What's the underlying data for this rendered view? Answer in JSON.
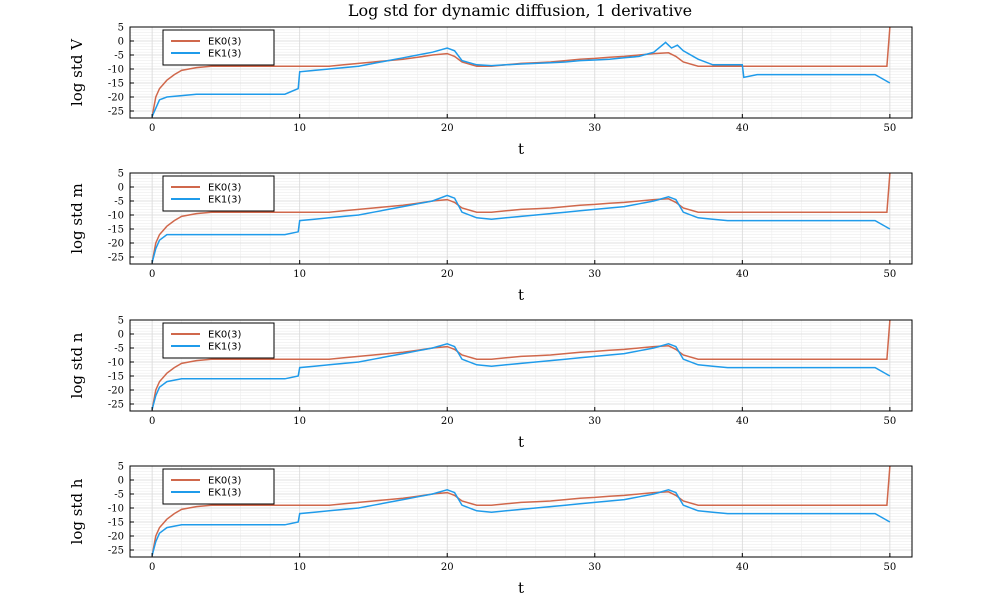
{
  "figure_title": "Log std for dynamic diffusion, 1 derivative",
  "colors": {
    "ek0": "#D0684C",
    "ek1": "#1F9BEA",
    "grid": "#d8d8d8",
    "minor_grid": "#eeeeee",
    "axis": "#000000"
  },
  "chart_data": [
    {
      "type": "line",
      "title": "Log std for dynamic diffusion, 1 derivative",
      "xlabel": "t",
      "ylabel": "log std V",
      "xlim": [
        -1.5,
        51.5
      ],
      "ylim": [
        -27.5,
        5
      ],
      "xticks": [
        0,
        10,
        20,
        30,
        40,
        50
      ],
      "yticks": [
        5,
        0,
        -5,
        -10,
        -15,
        -20,
        -25
      ],
      "grid": true,
      "legend_position": "top-left",
      "series": [
        {
          "name": "EK0(3)",
          "color": "#D0684C",
          "x": [
            0,
            0.25,
            0.5,
            1,
            1.5,
            2,
            3,
            4,
            5,
            6,
            7,
            8,
            9,
            10,
            11,
            12,
            13,
            14,
            15,
            16,
            17,
            18,
            19,
            20,
            20.5,
            21,
            22,
            23,
            24,
            25,
            26,
            27,
            28,
            29,
            30,
            31,
            32,
            33,
            34,
            35,
            35.5,
            36,
            37,
            38,
            39,
            40,
            41,
            42,
            43,
            44,
            45,
            46,
            47,
            48,
            49,
            49.8,
            50
          ],
          "y": [
            -27,
            -20,
            -17,
            -14,
            -12,
            -10.5,
            -9.5,
            -9,
            -9,
            -9,
            -9,
            -9,
            -9,
            -9,
            -9,
            -9,
            -8.5,
            -8,
            -7.5,
            -7,
            -6.5,
            -5.8,
            -5,
            -4.5,
            -5.5,
            -7.5,
            -9,
            -9,
            -8.5,
            -8,
            -7.8,
            -7.5,
            -7,
            -6.5,
            -6.2,
            -5.8,
            -5.5,
            -5,
            -4.5,
            -4.2,
            -5.5,
            -7.5,
            -9,
            -9,
            -9,
            -9,
            -9,
            -9,
            -9,
            -9,
            -9,
            -9,
            -9,
            -9,
            -9,
            -9,
            5
          ]
        },
        {
          "name": "EK1(3)",
          "color": "#1F9BEA",
          "x": [
            0,
            0.25,
            0.5,
            1,
            2,
            3,
            4,
            5,
            6,
            7,
            8,
            9,
            9.9,
            10,
            11,
            12,
            13,
            14,
            15,
            16,
            17,
            18,
            19,
            20,
            20.5,
            21,
            22,
            23,
            24,
            25,
            26,
            27,
            28,
            29,
            30,
            31,
            32,
            33,
            34,
            34.8,
            35.2,
            35.6,
            36,
            37,
            38,
            39,
            40,
            40.1,
            41,
            42,
            43,
            44,
            45,
            46,
            47,
            48,
            49,
            50
          ],
          "y": [
            -27,
            -24,
            -21,
            -20,
            -19.5,
            -19,
            -19,
            -19,
            -19,
            -19,
            -19,
            -19,
            -17,
            -11,
            -10.5,
            -10,
            -9.5,
            -9,
            -8,
            -7,
            -6,
            -5,
            -4,
            -2.5,
            -3.5,
            -7,
            -8.5,
            -8.8,
            -8.5,
            -8.2,
            -8,
            -7.8,
            -7.5,
            -7,
            -6.8,
            -6.5,
            -6,
            -5.5,
            -4,
            -0.5,
            -2.5,
            -1.5,
            -3.5,
            -6.5,
            -8.5,
            -8.5,
            -8.5,
            -13,
            -12,
            -12,
            -12,
            -12,
            -12,
            -12,
            -12,
            -12,
            -12,
            -15
          ]
        }
      ]
    },
    {
      "type": "line",
      "xlabel": "t",
      "ylabel": "log std m",
      "xlim": [
        -1.5,
        51.5
      ],
      "ylim": [
        -27.5,
        5
      ],
      "xticks": [
        0,
        10,
        20,
        30,
        40,
        50
      ],
      "yticks": [
        5,
        0,
        -5,
        -10,
        -15,
        -20,
        -25
      ],
      "grid": true,
      "legend_position": "top-left",
      "series": [
        {
          "name": "EK0(3)",
          "color": "#D0684C",
          "x": [
            0,
            0.25,
            0.5,
            1,
            1.5,
            2,
            3,
            4,
            5,
            6,
            7,
            8,
            9,
            10,
            11,
            12,
            13,
            14,
            15,
            16,
            17,
            18,
            19,
            20,
            20.5,
            21,
            22,
            23,
            24,
            25,
            26,
            27,
            28,
            29,
            30,
            31,
            32,
            33,
            34,
            35,
            35.5,
            36,
            37,
            38,
            39,
            40,
            41,
            42,
            43,
            44,
            45,
            46,
            47,
            48,
            49,
            49.8,
            50
          ],
          "y": [
            -27,
            -20,
            -17,
            -14,
            -12,
            -10.5,
            -9.5,
            -9,
            -9,
            -9,
            -9,
            -9,
            -9,
            -9,
            -9,
            -9,
            -8.5,
            -8,
            -7.5,
            -7,
            -6.5,
            -5.8,
            -5,
            -4.5,
            -5.5,
            -7.5,
            -9,
            -9,
            -8.5,
            -8,
            -7.8,
            -7.5,
            -7,
            -6.5,
            -6.2,
            -5.8,
            -5.5,
            -5,
            -4.5,
            -4.2,
            -5.5,
            -7.5,
            -9,
            -9,
            -9,
            -9,
            -9,
            -9,
            -9,
            -9,
            -9,
            -9,
            -9,
            -9,
            -9,
            -9,
            5
          ]
        },
        {
          "name": "EK1(3)",
          "color": "#1F9BEA",
          "x": [
            0,
            0.25,
            0.5,
            1,
            2,
            3,
            4,
            5,
            6,
            7,
            8,
            9,
            9.9,
            10,
            11,
            12,
            13,
            14,
            15,
            16,
            17,
            18,
            19,
            20,
            20.5,
            21,
            22,
            23,
            24,
            25,
            26,
            27,
            28,
            29,
            30,
            31,
            32,
            33,
            34,
            35,
            35.5,
            36,
            37,
            38,
            39,
            40,
            41,
            42,
            43,
            44,
            45,
            46,
            47,
            48,
            49,
            50
          ],
          "y": [
            -27,
            -22,
            -19,
            -17,
            -17,
            -17,
            -17,
            -17,
            -17,
            -17,
            -17,
            -17,
            -16,
            -12,
            -11.5,
            -11,
            -10.5,
            -10,
            -9,
            -8,
            -7,
            -6,
            -5,
            -3,
            -4,
            -9,
            -11,
            -11.5,
            -11,
            -10.5,
            -10,
            -9.5,
            -9,
            -8.5,
            -8,
            -7.5,
            -7,
            -6,
            -5,
            -3.5,
            -4.5,
            -9,
            -11,
            -11.5,
            -12,
            -12,
            -12,
            -12,
            -12,
            -12,
            -12,
            -12,
            -12,
            -12,
            -12,
            -15
          ]
        }
      ]
    },
    {
      "type": "line",
      "xlabel": "t",
      "ylabel": "log std n",
      "xlim": [
        -1.5,
        51.5
      ],
      "ylim": [
        -27.5,
        5
      ],
      "xticks": [
        0,
        10,
        20,
        30,
        40,
        50
      ],
      "yticks": [
        5,
        0,
        -5,
        -10,
        -15,
        -20,
        -25
      ],
      "grid": true,
      "legend_position": "top-left",
      "series": [
        {
          "name": "EK0(3)",
          "color": "#D0684C",
          "x": [
            0,
            0.25,
            0.5,
            1,
            1.5,
            2,
            3,
            4,
            5,
            6,
            7,
            8,
            9,
            10,
            11,
            12,
            13,
            14,
            15,
            16,
            17,
            18,
            19,
            20,
            20.5,
            21,
            22,
            23,
            24,
            25,
            26,
            27,
            28,
            29,
            30,
            31,
            32,
            33,
            34,
            35,
            35.5,
            36,
            37,
            38,
            39,
            40,
            41,
            42,
            43,
            44,
            45,
            46,
            47,
            48,
            49,
            49.8,
            50
          ],
          "y": [
            -27,
            -20,
            -17,
            -14,
            -12,
            -10.5,
            -9.5,
            -9,
            -9,
            -9,
            -9,
            -9,
            -9,
            -9,
            -9,
            -9,
            -8.5,
            -8,
            -7.5,
            -7,
            -6.5,
            -5.8,
            -5,
            -4.5,
            -5.5,
            -7.5,
            -9,
            -9,
            -8.5,
            -8,
            -7.8,
            -7.5,
            -7,
            -6.5,
            -6.2,
            -5.8,
            -5.5,
            -5,
            -4.5,
            -4.2,
            -5.5,
            -7.5,
            -9,
            -9,
            -9,
            -9,
            -9,
            -9,
            -9,
            -9,
            -9,
            -9,
            -9,
            -9,
            -9,
            -9,
            5
          ]
        },
        {
          "name": "EK1(3)",
          "color": "#1F9BEA",
          "x": [
            0,
            0.25,
            0.5,
            1,
            2,
            3,
            4,
            5,
            6,
            7,
            8,
            9,
            9.9,
            10,
            11,
            12,
            13,
            14,
            15,
            16,
            17,
            18,
            19,
            20,
            20.5,
            21,
            22,
            23,
            24,
            25,
            26,
            27,
            28,
            29,
            30,
            31,
            32,
            33,
            34,
            35,
            35.5,
            36,
            37,
            38,
            39,
            40,
            41,
            42,
            43,
            44,
            45,
            46,
            47,
            48,
            49,
            50
          ],
          "y": [
            -27,
            -22,
            -19,
            -17,
            -16,
            -16,
            -16,
            -16,
            -16,
            -16,
            -16,
            -16,
            -15,
            -12,
            -11.5,
            -11,
            -10.5,
            -10,
            -9,
            -8,
            -7,
            -6,
            -5,
            -3.5,
            -4.5,
            -9,
            -11,
            -11.5,
            -11,
            -10.5,
            -10,
            -9.5,
            -9,
            -8.5,
            -8,
            -7.5,
            -7,
            -6,
            -5,
            -3.5,
            -4.5,
            -9,
            -11,
            -11.5,
            -12,
            -12,
            -12,
            -12,
            -12,
            -12,
            -12,
            -12,
            -12,
            -12,
            -12,
            -15
          ]
        }
      ]
    },
    {
      "type": "line",
      "xlabel": "t",
      "ylabel": "log std h",
      "xlim": [
        -1.5,
        51.5
      ],
      "ylim": [
        -27.5,
        5
      ],
      "xticks": [
        0,
        10,
        20,
        30,
        40,
        50
      ],
      "yticks": [
        5,
        0,
        -5,
        -10,
        -15,
        -20,
        -25
      ],
      "grid": true,
      "legend_position": "top-left",
      "series": [
        {
          "name": "EK0(3)",
          "color": "#D0684C",
          "x": [
            0,
            0.25,
            0.5,
            1,
            1.5,
            2,
            3,
            4,
            5,
            6,
            7,
            8,
            9,
            10,
            11,
            12,
            13,
            14,
            15,
            16,
            17,
            18,
            19,
            20,
            20.5,
            21,
            22,
            23,
            24,
            25,
            26,
            27,
            28,
            29,
            30,
            31,
            32,
            33,
            34,
            35,
            35.5,
            36,
            37,
            38,
            39,
            40,
            41,
            42,
            43,
            44,
            45,
            46,
            47,
            48,
            49,
            49.8,
            50
          ],
          "y": [
            -27,
            -20,
            -17,
            -14,
            -12,
            -10.5,
            -9.5,
            -9,
            -9,
            -9,
            -9,
            -9,
            -9,
            -9,
            -9,
            -9,
            -8.5,
            -8,
            -7.5,
            -7,
            -6.5,
            -5.8,
            -5,
            -4.5,
            -5.5,
            -7.5,
            -9,
            -9,
            -8.5,
            -8,
            -7.8,
            -7.5,
            -7,
            -6.5,
            -6.2,
            -5.8,
            -5.5,
            -5,
            -4.5,
            -4.2,
            -5.5,
            -7.5,
            -9,
            -9,
            -9,
            -9,
            -9,
            -9,
            -9,
            -9,
            -9,
            -9,
            -9,
            -9,
            -9,
            -9,
            5
          ]
        },
        {
          "name": "EK1(3)",
          "color": "#1F9BEA",
          "x": [
            0,
            0.25,
            0.5,
            1,
            2,
            3,
            4,
            5,
            6,
            7,
            8,
            9,
            9.9,
            10,
            11,
            12,
            13,
            14,
            15,
            16,
            17,
            18,
            19,
            20,
            20.5,
            21,
            22,
            23,
            24,
            25,
            26,
            27,
            28,
            29,
            30,
            31,
            32,
            33,
            34,
            35,
            35.5,
            36,
            37,
            38,
            39,
            40,
            41,
            42,
            43,
            44,
            45,
            46,
            47,
            48,
            49,
            50
          ],
          "y": [
            -27,
            -22,
            -19,
            -17,
            -16,
            -16,
            -16,
            -16,
            -16,
            -16,
            -16,
            -16,
            -15,
            -12,
            -11.5,
            -11,
            -10.5,
            -10,
            -9,
            -8,
            -7,
            -6,
            -5,
            -3.5,
            -4.5,
            -9,
            -11,
            -11.5,
            -11,
            -10.5,
            -10,
            -9.5,
            -9,
            -8.5,
            -8,
            -7.5,
            -7,
            -6,
            -5,
            -3.5,
            -4.5,
            -9,
            -11,
            -11.5,
            -12,
            -12,
            -12,
            -12,
            -12,
            -12,
            -12,
            -12,
            -12,
            -12,
            -12,
            -15
          ]
        }
      ]
    }
  ]
}
